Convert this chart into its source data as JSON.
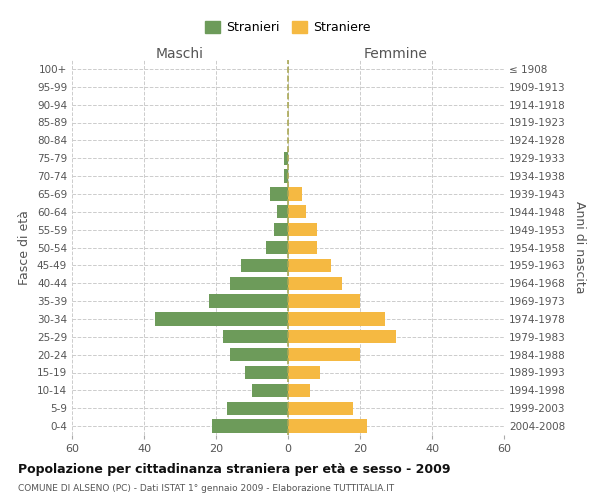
{
  "age_groups": [
    "100+",
    "95-99",
    "90-94",
    "85-89",
    "80-84",
    "75-79",
    "70-74",
    "65-69",
    "60-64",
    "55-59",
    "50-54",
    "45-49",
    "40-44",
    "35-39",
    "30-34",
    "25-29",
    "20-24",
    "15-19",
    "10-14",
    "5-9",
    "0-4"
  ],
  "birth_years": [
    "≤ 1908",
    "1909-1913",
    "1914-1918",
    "1919-1923",
    "1924-1928",
    "1929-1933",
    "1934-1938",
    "1939-1943",
    "1944-1948",
    "1949-1953",
    "1954-1958",
    "1959-1963",
    "1964-1968",
    "1969-1973",
    "1974-1978",
    "1979-1983",
    "1984-1988",
    "1989-1993",
    "1994-1998",
    "1999-2003",
    "2004-2008"
  ],
  "maschi": [
    0,
    0,
    0,
    0,
    0,
    1,
    1,
    5,
    3,
    4,
    6,
    13,
    16,
    22,
    37,
    18,
    16,
    12,
    10,
    17,
    21
  ],
  "femmine": [
    0,
    0,
    0,
    0,
    0,
    0,
    0,
    4,
    5,
    8,
    8,
    12,
    15,
    20,
    27,
    30,
    20,
    9,
    6,
    18,
    22
  ],
  "male_color": "#6d9b5a",
  "female_color": "#f5b942",
  "title": "Popolazione per cittadinanza straniera per età e sesso - 2009",
  "subtitle": "COMUNE DI ALSENO (PC) - Dati ISTAT 1° gennaio 2009 - Elaborazione TUTTITALIA.IT",
  "ylabel_left": "Fasce di età",
  "ylabel_right": "Anni di nascita",
  "xlabel_maschi": "Maschi",
  "xlabel_femmine": "Femmine",
  "legend_maschi": "Stranieri",
  "legend_femmine": "Straniere",
  "xlim": 60,
  "background_color": "#ffffff",
  "grid_color": "#cccccc"
}
